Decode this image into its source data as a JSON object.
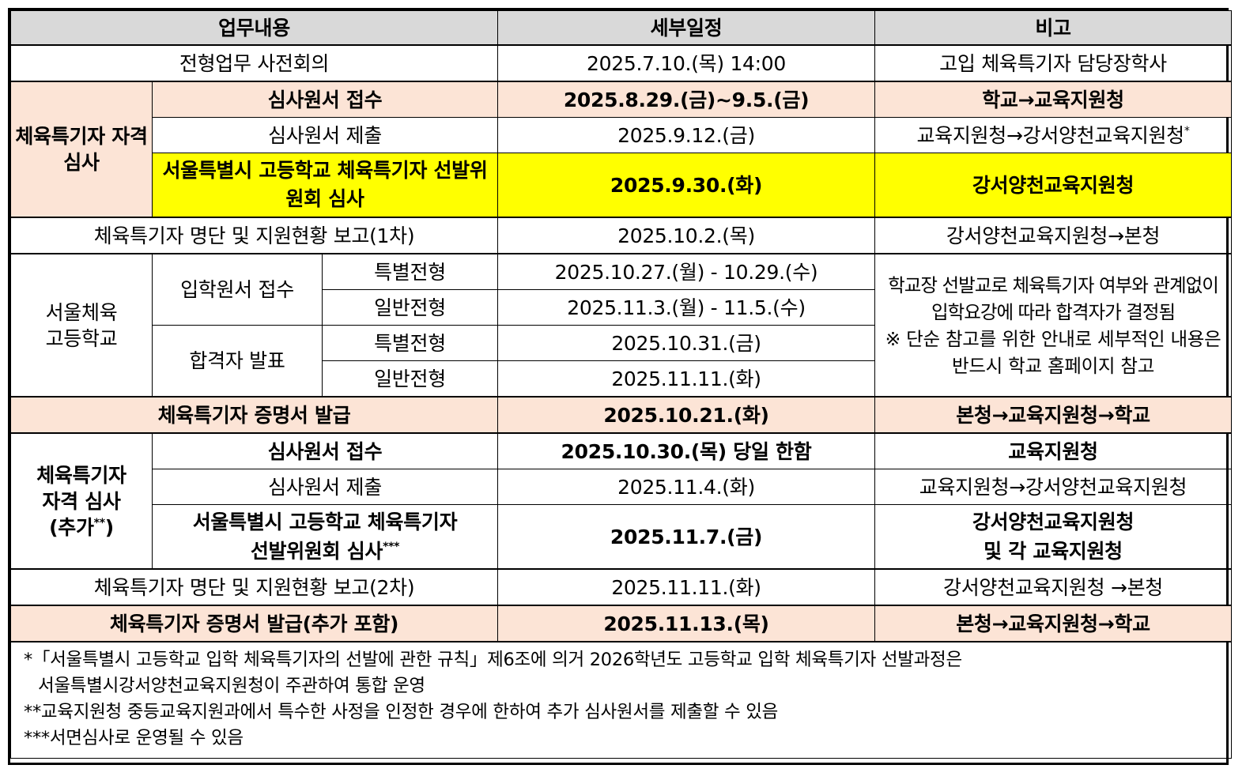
{
  "header": {
    "col1": "업무내용",
    "col2": "세부일정",
    "col3": "비고"
  },
  "rows": {
    "pre_meeting": {
      "task": "전형업무 사전회의",
      "date": "2025.7.10.(목) 14:00",
      "note": "고입 체육특기자 담당장학사"
    },
    "review1": {
      "group": "체육특기자 자격 심사",
      "r1": {
        "task": "심사원서 접수",
        "date": "2025.8.29.(금)~9.5.(금)",
        "note": "학교→교육지원청"
      },
      "r2": {
        "task": "심사원서 제출",
        "date": "2025.9.12.(금)",
        "note": "교육지원청→강서양천교육지원청",
        "mark": "*"
      },
      "r3": {
        "task": "서울특별시 고등학교 체육특기자 선발위원회 심사",
        "date": "2025.9.30.(화)",
        "note": "강서양천교육지원청"
      }
    },
    "report1": {
      "task": "체육특기자 명단 및 지원현황 보고(1차)",
      "date": "2025.10.2.(목)",
      "note": "강서양천교육지원청→본청"
    },
    "seoul_school": {
      "group": "서울체육 고등학교",
      "apply": "입학원서 접수",
      "announce": "합격자 발표",
      "special": "특별전형",
      "general": "일반전형",
      "apply_special_date": "2025.10.27.(월) - 10.29.(수)",
      "apply_general_date": "2025.11.3.(월) - 11.5.(수)",
      "announce_special_date": "2025.10.31.(금)",
      "announce_general_date": "2025.11.11.(화)",
      "remark1": "학교장 선발교로 체육특기자 여부와 관계없이 입학요강에 따라 합격자가 결정됨",
      "remark2": "※ 단순 참고를 위한 안내로 세부적인 내용은 반드시 학교 홈페이지 참고"
    },
    "cert1": {
      "task": "체육특기자 증명서 발급",
      "date": "2025.10.21.(화)",
      "note": "본청→교육지원청→학교"
    },
    "review2": {
      "group": "체육특기자 자격 심사 (추가",
      "group_mark": "**",
      "group_end": ")",
      "r1": {
        "task": "심사원서 접수",
        "date": "2025.10.30.(목) 당일 한함",
        "note": "교육지원청"
      },
      "r2": {
        "task": "심사원서 제출",
        "date": "2025.11.4.(화)",
        "note": "교육지원청→강서양천교육지원청"
      },
      "r3": {
        "task_line1": "서울특별시 고등학교 체육특기자",
        "task_line2": "선발위원회 심사",
        "mark": "***",
        "date": "2025.11.7.(금)",
        "note_line1": "강서양천교육지원청",
        "note_line2": "및 각 교육지원청"
      }
    },
    "report2": {
      "task": "체육특기자 명단 및 지원현황 보고(2차)",
      "date": "2025.11.11.(화)",
      "note": "강서양천교육지원청 →본청"
    },
    "cert2": {
      "task": "체육특기자 증명서 발급(추가 포함)",
      "date": "2025.11.13.(목)",
      "note": "본청→교육지원청→학교"
    }
  },
  "notes": {
    "n1_line1": "*「서울특별시 고등학교 입학 체육특기자의 선발에 관한 규칙」제6조에 의거 2026학년도 고등학교 입학 체육특기자 선발과정은",
    "n1_line2": "서울특별시강서양천교육지원청이 주관하여 통합 운영",
    "n2": "**교육지원청 중등교육지원과에서 특수한 사정을 인정한 경우에 한하여 추가 심사원서를 제출할 수 있음",
    "n3": "***서면심사로 운영될 수 있음"
  }
}
